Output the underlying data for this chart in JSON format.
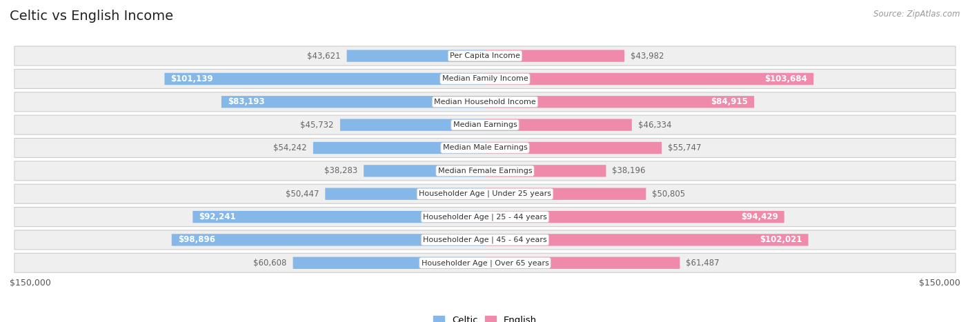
{
  "title": "Celtic vs English Income",
  "source": "Source: ZipAtlas.com",
  "max_value": 150000,
  "categories": [
    "Per Capita Income",
    "Median Family Income",
    "Median Household Income",
    "Median Earnings",
    "Median Male Earnings",
    "Median Female Earnings",
    "Householder Age | Under 25 years",
    "Householder Age | 25 - 44 years",
    "Householder Age | 45 - 64 years",
    "Householder Age | Over 65 years"
  ],
  "celtic_values": [
    43621,
    101139,
    83193,
    45732,
    54242,
    38283,
    50447,
    92241,
    98896,
    60608
  ],
  "english_values": [
    43982,
    103684,
    84915,
    46334,
    55747,
    38196,
    50805,
    94429,
    102021,
    61487
  ],
  "celtic_labels": [
    "$43,621",
    "$101,139",
    "$83,193",
    "$45,732",
    "$54,242",
    "$38,283",
    "$50,447",
    "$92,241",
    "$98,896",
    "$60,608"
  ],
  "english_labels": [
    "$43,982",
    "$103,684",
    "$84,915",
    "$46,334",
    "$55,747",
    "$38,196",
    "$50,805",
    "$94,429",
    "$102,021",
    "$61,487"
  ],
  "celtic_color": "#85B8E8",
  "english_color": "#F08AAA",
  "celtic_label_inside_threshold": 75000,
  "english_label_inside_threshold": 75000,
  "bar_height": 0.52,
  "row_bg_color": "#EFEFEF",
  "label_color_dark": "#666666",
  "label_color_white": "#FFFFFF",
  "x_axis_label_left": "$150,000",
  "x_axis_label_right": "$150,000",
  "legend_celtic": "Celtic",
  "legend_english": "English",
  "title_fontsize": 14,
  "label_fontsize": 8.5,
  "cat_fontsize": 8.0,
  "source_fontsize": 8.5
}
